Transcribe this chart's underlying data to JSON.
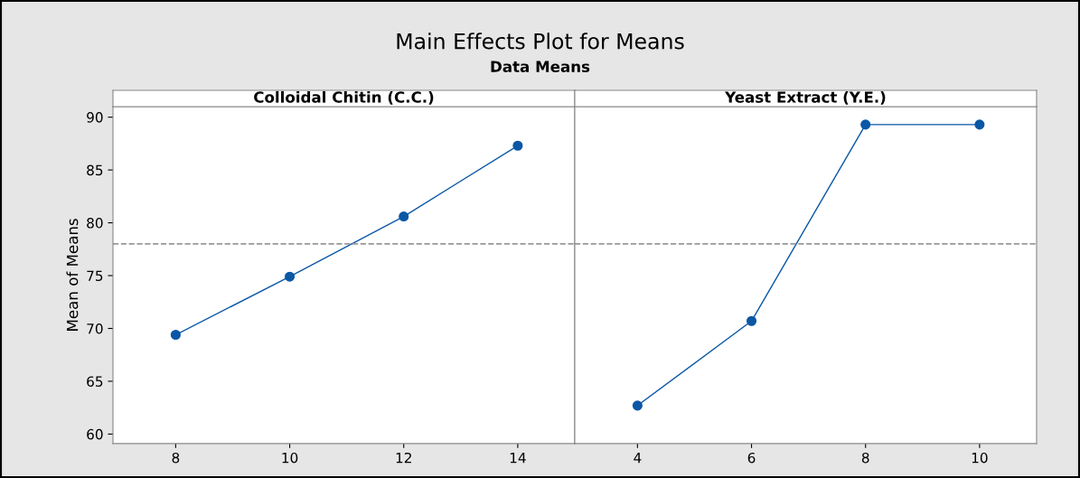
{
  "chart_data": [
    {
      "type": "line",
      "title": "Colloidal Chitin (C.C.)",
      "ylabel": "Mean of Means",
      "annotations": [
        "Main Effects Plot for Means",
        "Data Means"
      ],
      "categories": [
        "8",
        "10",
        "12",
        "14"
      ],
      "series": [
        {
          "color": "#0a57a6",
          "values": [
            69.4,
            74.9,
            80.6,
            87.3
          ]
        }
      ],
      "ylim": [
        59.1,
        91.0
      ],
      "yticks": [
        60,
        65,
        70,
        75,
        80,
        85,
        90
      ],
      "marker": "circle",
      "line_style": "solid",
      "grid": false,
      "ref_lines": [
        {
          "axis": "y",
          "value": 78.0,
          "color": "#999999",
          "line_style": "dashed"
        }
      ]
    },
    {
      "type": "line",
      "title": "Yeast Extract (Y.E.)",
      "categories": [
        "4",
        "6",
        "8",
        "10"
      ],
      "series": [
        {
          "color": "#0a57a6",
          "values": [
            62.7,
            70.7,
            89.3,
            89.3
          ]
        }
      ],
      "ylim": [
        59.1,
        91.0
      ],
      "yticks": [
        60,
        65,
        70,
        75,
        80,
        85,
        90
      ],
      "tick_labels": "x",
      "marker": "circle",
      "line_style": "solid",
      "grid": false,
      "ref_lines": [
        {
          "axis": "y",
          "value": 78.0,
          "color": "#999999",
          "line_style": "dashed"
        }
      ]
    }
  ]
}
